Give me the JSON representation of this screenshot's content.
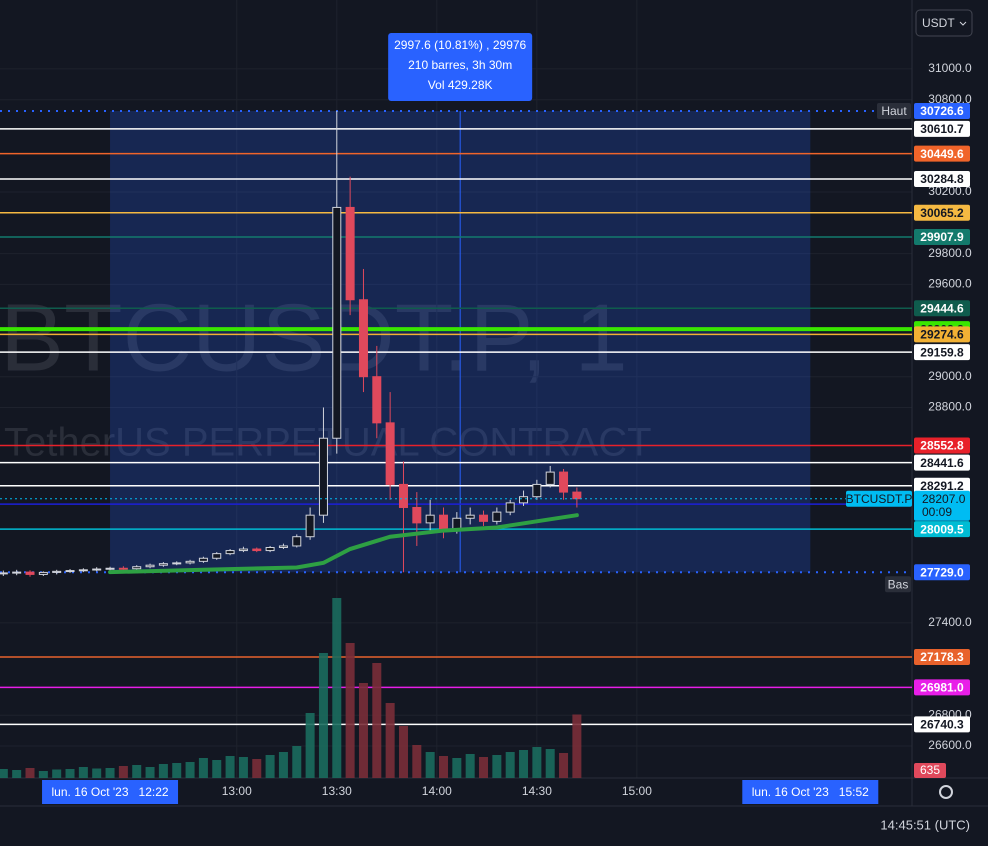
{
  "chart_data": {
    "type": "candlestick",
    "title": "BTCUSDT.P, 1",
    "subtitle": "TetherUS PERPETUAL CONTRACT",
    "currency": "USDT",
    "x": [
      710,
      714,
      718,
      722,
      726,
      730,
      734,
      738,
      742,
      746,
      750,
      754,
      758,
      762,
      766,
      770,
      774,
      778,
      782,
      786,
      790,
      794,
      798,
      802,
      806,
      810,
      814,
      818,
      822,
      826,
      830,
      834,
      838,
      842,
      846,
      850,
      854,
      858,
      862,
      866,
      870,
      874,
      878,
      882
    ],
    "open": [
      27720,
      27725,
      27730,
      27715,
      27728,
      27735,
      27740,
      27745,
      27750,
      27755,
      27752,
      27765,
      27775,
      27785,
      27790,
      27800,
      27820,
      27850,
      27870,
      27880,
      27870,
      27890,
      27900,
      27960,
      28100,
      28600,
      30100,
      29500,
      29000,
      28700,
      28300,
      28150,
      28050,
      28100,
      28000,
      28080,
      28100,
      28060,
      28120,
      28180,
      28220,
      28300,
      28380,
      28250
    ],
    "high": [
      27740,
      27745,
      27742,
      27735,
      27745,
      27750,
      27755,
      27762,
      27765,
      27768,
      27775,
      27785,
      27795,
      27800,
      27810,
      27830,
      27860,
      27880,
      27895,
      27890,
      27900,
      27915,
      27975,
      28150,
      28800,
      30726.6,
      30300,
      29700,
      29200,
      28900,
      28450,
      28250,
      28200,
      28150,
      28120,
      28150,
      28130,
      28150,
      28200,
      28260,
      28330,
      28420,
      28400,
      28280
    ],
    "low": [
      27705,
      27710,
      27700,
      27705,
      27715,
      27725,
      27730,
      27735,
      27740,
      27740,
      27745,
      27755,
      27765,
      27775,
      27780,
      27790,
      27810,
      27840,
      27860,
      27860,
      27860,
      27880,
      27890,
      27940,
      28050,
      28500,
      29400,
      28900,
      28600,
      28200,
      27729,
      27900,
      28000,
      27950,
      27980,
      28040,
      28030,
      28040,
      28100,
      28160,
      28200,
      28280,
      28200,
      28150
    ],
    "close": [
      27725,
      27730,
      27715,
      27728,
      27735,
      27740,
      27745,
      27750,
      27755,
      27752,
      27765,
      27775,
      27785,
      27790,
      27800,
      27820,
      27850,
      27870,
      27880,
      27870,
      27890,
      27900,
      27960,
      28100,
      28600,
      30100,
      29500,
      29000,
      28700,
      28300,
      28150,
      28050,
      28100,
      28000,
      28080,
      28100,
      28060,
      28120,
      28180,
      28220,
      28300,
      28380,
      28250,
      28207
    ],
    "volume": [
      90,
      80,
      100,
      70,
      85,
      90,
      110,
      95,
      100,
      120,
      130,
      110,
      140,
      150,
      160,
      200,
      180,
      220,
      210,
      190,
      230,
      260,
      320,
      650,
      1250,
      1800,
      1350,
      950,
      1150,
      750,
      520,
      330,
      260,
      220,
      200,
      240,
      210,
      230,
      260,
      280,
      310,
      290,
      250,
      635
    ],
    "up_color": "#d1d4dc",
    "down_color": "#e0495c",
    "ma": {
      "color": "#2ea043",
      "x": [
        742,
        770,
        798,
        806,
        814,
        826,
        842,
        858,
        870,
        882
      ],
      "values": [
        27730,
        27745,
        27760,
        27790,
        27880,
        27960,
        28000,
        28020,
        28060,
        28100
      ]
    },
    "xlim": [
      709,
      982.5
    ],
    "xticks": [
      {
        "value": 780,
        "label": "13:00"
      },
      {
        "value": 810,
        "label": "13:30"
      },
      {
        "value": 840,
        "label": "14:00"
      },
      {
        "value": 870,
        "label": "14:30"
      },
      {
        "value": 900,
        "label": "15:00"
      }
    ],
    "ylim": [
      26392,
      31448
    ],
    "yticks": [
      {
        "value": 31000,
        "label": "31000.0"
      },
      {
        "value": 30800,
        "label": "30800.0"
      },
      {
        "value": 30200,
        "label": "30200.0"
      },
      {
        "value": 29800,
        "label": "29800.0"
      },
      {
        "value": 29600,
        "label": "29600.0"
      },
      {
        "value": 29000,
        "label": "29000.0"
      },
      {
        "value": 28800,
        "label": "28800.0"
      },
      {
        "value": 27400,
        "label": "27400.0"
      },
      {
        "value": 26800,
        "label": "26800.0"
      },
      {
        "value": 26600,
        "label": "26600.0"
      }
    ],
    "grid": true,
    "levels": [
      {
        "value": 30610.7,
        "color": "#ffffff"
      },
      {
        "value": 30449.6,
        "color": "#f0642a"
      },
      {
        "value": 30284.8,
        "color": "#ffffff"
      },
      {
        "value": 30065.2,
        "color": "#f5b942"
      },
      {
        "value": 29907.9,
        "color": "#137a6c"
      },
      {
        "value": 29444.6,
        "color": "#0f5c4d"
      },
      {
        "value": 29308.8,
        "color": "#39e600"
      },
      {
        "value": 29274.6,
        "color": "#f2b134"
      },
      {
        "value": 29159.8,
        "color": "#ffffff"
      },
      {
        "value": 28552.8,
        "color": "#e8212a"
      },
      {
        "value": 28441.6,
        "color": "#ffffff"
      },
      {
        "value": 28291.2,
        "color": "#ffffff"
      },
      {
        "value": 28171.5,
        "color": "#1c1fd9"
      },
      {
        "value": 28009.5,
        "color": "#00bcd4"
      },
      {
        "value": 27178.3,
        "color": "#e8622c"
      },
      {
        "value": {
          "value": 26981,
          "label": "26981.0"
        },
        "color": "#e81ee8"
      },
      {
        "value": 26740.3,
        "color": "#ffffff"
      }
    ],
    "measure": {
      "start": 742,
      "end": 952,
      "high": 30726.6,
      "high_name": "Haut",
      "low": {
        "value": 27729,
        "label": "27729.0"
      },
      "low_name": "Bas",
      "color": "#2962ff",
      "lines": [
        "2997.6 (10.81%) , 29976",
        "210 barres, 3h 30m",
        "Vol 429.28K"
      ],
      "start_label": "lun. 16 Oct '23   12:22",
      "end_label": "lun. 16 Oct '23   15:52"
    },
    "last": {
      "value": {
        "value": 28207,
        "label": "28207.0"
      },
      "name": "BTCUSDT.P",
      "countdown": "00:09",
      "color": "#00bcf2"
    },
    "clock": "14:45:51 (UTC)"
  }
}
